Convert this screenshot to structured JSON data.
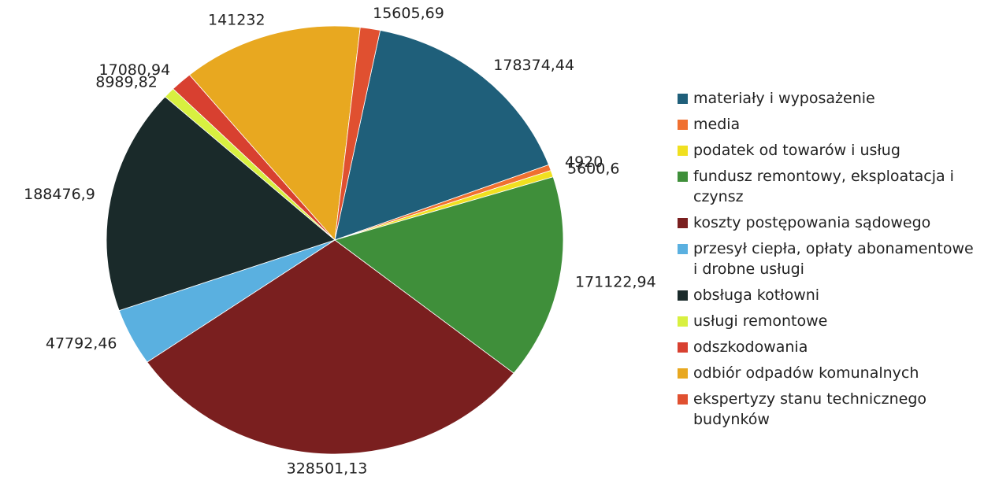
{
  "chart_data": {
    "type": "pie",
    "categories": [
      "materiały i wyposażenie",
      "media",
      "podatek od towarów i usług",
      "fundusz remontowy, eksploatacja i czynsz",
      "koszty postępowania sądowego",
      "przesył ciepła, opłaty abonamentowe i drobne usługi",
      "obsługa kotłowni",
      "usługi remontowe",
      "odszkodowania",
      "odbiór odpadów komunalnych",
      "ekspertyzy stanu technicznego budynków"
    ],
    "values": [
      178374.44,
      4920,
      5600.6,
      171122.94,
      328501.13,
      47792.46,
      188476.9,
      8989.82,
      17080.94,
      141232,
      15605.69
    ],
    "value_labels": [
      "178374,44",
      "4920",
      "5600,6",
      "171122,94",
      "328501,13",
      "47792,46",
      "188476,9",
      "8989,82",
      "17080,94",
      "141232",
      "15605,69"
    ],
    "colors": [
      "#1f5f7a",
      "#f07030",
      "#f0e020",
      "#3f8f3a",
      "#7a1f1f",
      "#5ab0e0",
      "#1a2a2a",
      "#d8f040",
      "#d84030",
      "#e8a820",
      "#e05030"
    ]
  }
}
